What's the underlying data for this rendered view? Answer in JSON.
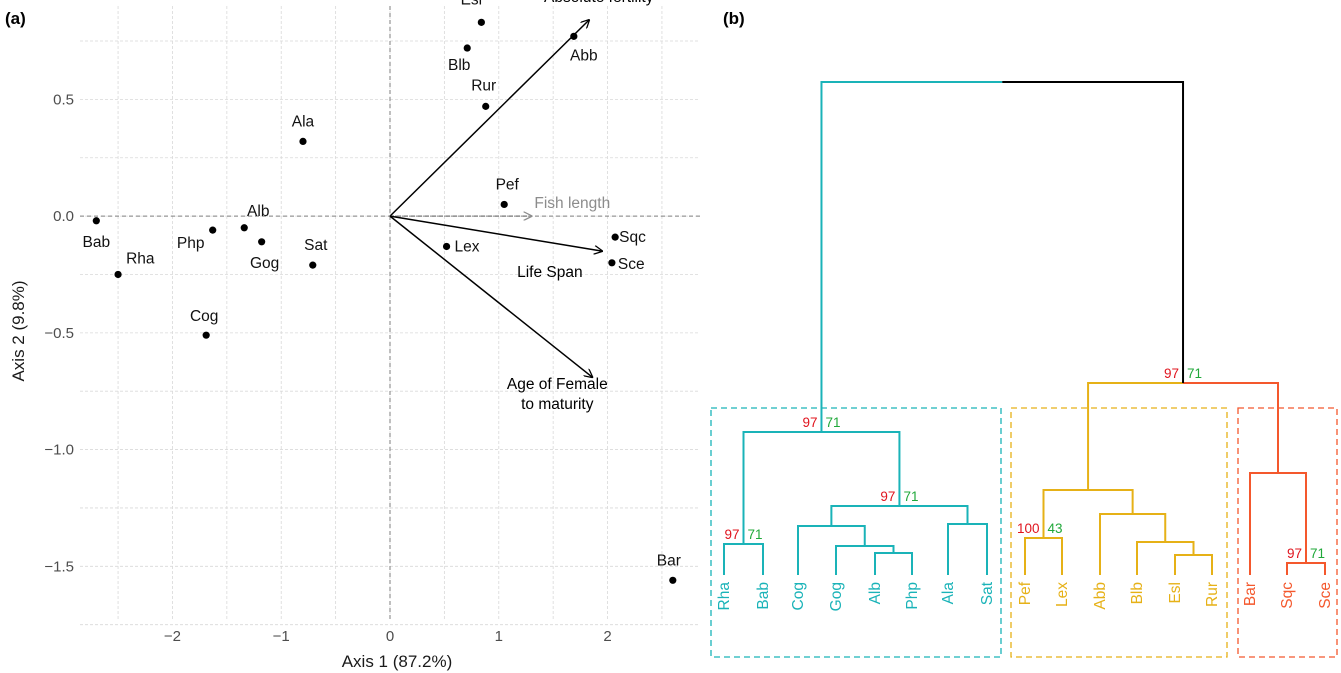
{
  "panels": {
    "a": "(a)",
    "b": "(b)"
  },
  "chart_data": [
    {
      "type": "scatter",
      "subtype": "pca-biplot",
      "xlabel": "Axis 1 (87.2%)",
      "ylabel": "Axis 2 (9.8%)",
      "xlim": [
        -2.85,
        2.85
      ],
      "ylim": [
        -1.73,
        0.9
      ],
      "xticks": [
        -2,
        -1,
        0,
        1,
        2
      ],
      "yticks": [
        -1.5,
        -1.0,
        -0.5,
        0.0,
        0.5
      ],
      "ytick_labels": [
        "−1.5",
        "−1.0",
        "−0.5",
        "0.0",
        "0.5"
      ],
      "xtick_labels": [
        "−2",
        "−1",
        "0",
        "1",
        "2"
      ],
      "grid": true,
      "points": [
        {
          "label": "Esl",
          "x": 0.84,
          "y": 0.83
        },
        {
          "label": "Abb",
          "x": 1.69,
          "y": 0.77
        },
        {
          "label": "Blb",
          "x": 0.71,
          "y": 0.72
        },
        {
          "label": "Rur",
          "x": 0.88,
          "y": 0.47
        },
        {
          "label": "Ala",
          "x": -0.8,
          "y": 0.32
        },
        {
          "label": "Pef",
          "x": 1.05,
          "y": 0.05
        },
        {
          "label": "Alb",
          "x": -1.34,
          "y": -0.05
        },
        {
          "label": "Php",
          "x": -1.63,
          "y": -0.06
        },
        {
          "label": "Gog",
          "x": -1.18,
          "y": -0.11
        },
        {
          "label": "Sat",
          "x": -0.71,
          "y": -0.21
        },
        {
          "label": "Lex",
          "x": 0.52,
          "y": -0.13
        },
        {
          "label": "Sqc",
          "x": 2.07,
          "y": -0.09
        },
        {
          "label": "Sce",
          "x": 2.04,
          "y": -0.2
        },
        {
          "label": "Bab",
          "x": -2.7,
          "y": -0.02
        },
        {
          "label": "Rha",
          "x": -2.5,
          "y": -0.25
        },
        {
          "label": "Cog",
          "x": -1.69,
          "y": -0.51
        },
        {
          "label": "Bar",
          "x": 2.6,
          "y": -1.56
        }
      ],
      "vectors": [
        {
          "label": "Absolute fertility",
          "x": 1.83,
          "y": 0.84,
          "style": "solid"
        },
        {
          "label": "Fish length",
          "x": 1.3,
          "y": 0.0,
          "style": "dashed"
        },
        {
          "label": "Life Span",
          "x": 1.95,
          "y": -0.15,
          "style": "solid"
        },
        {
          "label": "Age of Female\nto maturity",
          "x": 1.86,
          "y": -0.69,
          "style": "solid"
        }
      ],
      "colors": {
        "points": "#000000",
        "vectors": "#000000",
        "fish_length": "#8c8c8c",
        "grid": "#d9d9d9",
        "refline": "#7f7f7f"
      }
    },
    {
      "type": "dendrogram",
      "leaves": [
        "Rha",
        "Bab",
        "Cog",
        "Gog",
        "Alb",
        "Php",
        "Ala",
        "Sat",
        "Pef",
        "Lex",
        "Abb",
        "Blb",
        "Esl",
        "Rur",
        "Bar",
        "Sqc",
        "Sce"
      ],
      "clusters": [
        {
          "members": [
            "Rha",
            "Bab",
            "Cog",
            "Gog",
            "Alb",
            "Php",
            "Ala",
            "Sat"
          ],
          "color": "#1ab3b8"
        },
        {
          "members": [
            "Pef",
            "Lex",
            "Abb",
            "Blb",
            "Esl",
            "Rur"
          ],
          "color": "#e6b117"
        },
        {
          "members": [
            "Bar",
            "Sqc",
            "Sce"
          ],
          "color": "#f4582d"
        }
      ],
      "support": [
        {
          "node": "cyan-root",
          "left": "97",
          "right": "71"
        },
        {
          "node": "cyan-right",
          "left": "97",
          "right": "71"
        },
        {
          "node": "Rha-Bab",
          "left": "97",
          "right": "71"
        },
        {
          "node": "Pef-Lex",
          "left": "100",
          "right": "43"
        },
        {
          "node": "Sqc-Sce",
          "left": "97",
          "right": "71"
        },
        {
          "node": "yellow-orange",
          "left": "97",
          "right": "71"
        }
      ],
      "support_colors": {
        "left": "#e0141e",
        "right": "#20a83a"
      },
      "root_color": "#000000"
    }
  ]
}
